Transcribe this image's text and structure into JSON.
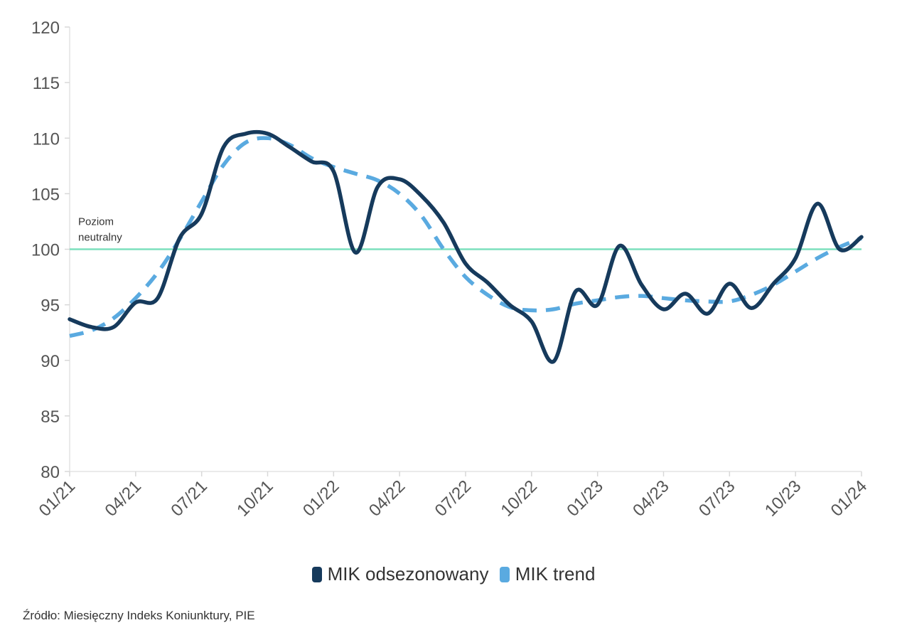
{
  "chart_data": {
    "type": "line",
    "x": [
      "01/21",
      "02/21",
      "03/21",
      "04/21",
      "05/21",
      "06/21",
      "07/21",
      "08/21",
      "09/21",
      "10/21",
      "11/21",
      "12/21",
      "01/22",
      "02/22",
      "03/22",
      "04/22",
      "05/22",
      "06/22",
      "07/22",
      "08/22",
      "09/22",
      "10/22",
      "11/22",
      "12/22",
      "01/23",
      "02/23",
      "03/23",
      "04/23",
      "05/23",
      "06/23",
      "07/23",
      "08/23",
      "09/23",
      "10/23",
      "11/23",
      "12/23",
      "01/24"
    ],
    "series": [
      {
        "name": "MIK odsezonowany",
        "color": "#163a5c",
        "dashed": false,
        "values": [
          93.7,
          93.0,
          93.0,
          95.2,
          95.6,
          101.0,
          103.2,
          109.2,
          110.4,
          110.4,
          109.2,
          107.9,
          107.0,
          99.7,
          105.6,
          106.3,
          104.8,
          102.4,
          98.7,
          97.0,
          95.0,
          93.5,
          89.9,
          96.2,
          95.0,
          100.3,
          96.8,
          94.6,
          96.0,
          94.2,
          96.9,
          94.7,
          96.9,
          99.2,
          104.1,
          100.0,
          101.1
        ]
      },
      {
        "name": "MIK trend",
        "color": "#5aaae0",
        "dashed": true,
        "values": [
          92.2,
          92.7,
          93.8,
          95.6,
          97.9,
          100.9,
          104.3,
          107.6,
          109.6,
          110.0,
          109.4,
          108.2,
          107.4,
          106.8,
          106.2,
          105.0,
          103.0,
          100.0,
          97.5,
          95.9,
          94.8,
          94.5,
          94.6,
          95.1,
          95.4,
          95.7,
          95.8,
          95.6,
          95.4,
          95.3,
          95.3,
          95.9,
          96.8,
          98.0,
          99.2,
          100.2,
          101.0
        ]
      }
    ],
    "x_ticks": [
      "01/21",
      "04/21",
      "07/21",
      "10/21",
      "01/22",
      "04/22",
      "07/22",
      "10/22",
      "01/23",
      "04/23",
      "07/23",
      "10/23",
      "01/24"
    ],
    "y_ticks": [
      80,
      85,
      90,
      95,
      100,
      105,
      110,
      115,
      120
    ],
    "ylim": [
      80,
      120
    ],
    "reference_line": {
      "value": 100,
      "color": "#7de0bd",
      "label_lines": [
        "Poziom",
        "neutralny"
      ]
    },
    "legend_position": "bottom",
    "grid": false,
    "xlabel": "",
    "ylabel": "",
    "title": ""
  },
  "legend": [
    {
      "label": "MIK odsezonowany",
      "color": "#163a5c"
    },
    {
      "label": "MIK trend",
      "color": "#5aaae0"
    }
  ],
  "source": "Źródło: Miesięczny Indeks Koniunktury, PIE"
}
